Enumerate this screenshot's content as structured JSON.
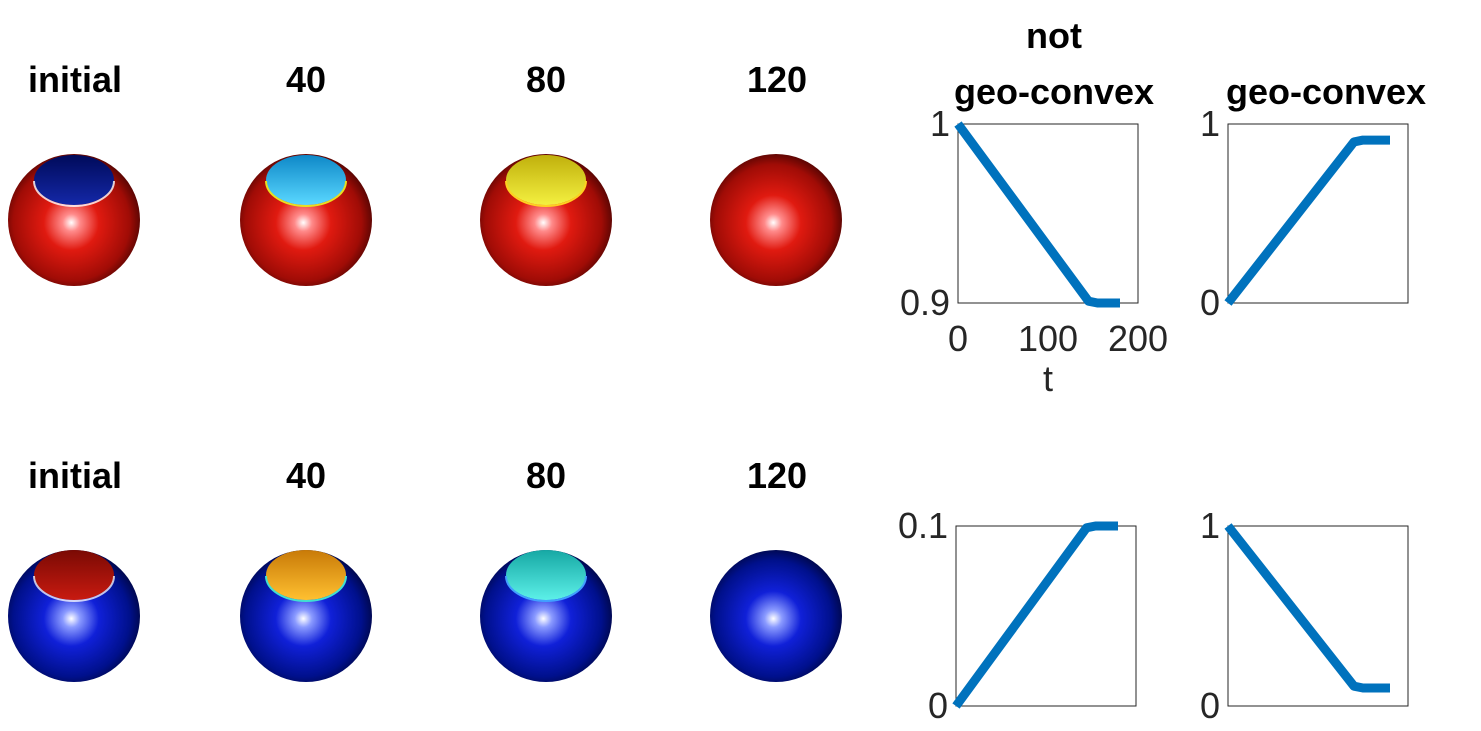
{
  "titles": {
    "frames": [
      "initial",
      "40",
      "80",
      "120"
    ],
    "plot_not_line1": "not",
    "plot_not_line2": "geo-convex",
    "plot_geo": "geo-convex"
  },
  "colors": {
    "red_sphere": "#c81208",
    "blue_sphere": "#0010c0",
    "line": "#0072bd",
    "cap_top": [
      "#0a1a8a",
      "#1aa8e0",
      "#e2e21a",
      "#c81208"
    ],
    "cap_bottom": [
      "#aa1106",
      "#f2a81a",
      "#2ed6d0",
      "#0010c0"
    ]
  },
  "chart_data": [
    {
      "type": "line",
      "title": "not geo-convex",
      "xlabel": "t",
      "ylabel": "",
      "xlim": [
        0,
        200
      ],
      "ylim": [
        0.9,
        1
      ],
      "xticks": [
        "0",
        "100",
        "200"
      ],
      "yticks": [
        "0.9",
        "1"
      ],
      "series": [
        {
          "x": [
            0,
            145,
            155,
            180
          ],
          "y": [
            1,
            0.901,
            0.9,
            0.9
          ]
        }
      ]
    },
    {
      "type": "line",
      "title": "geo-convex",
      "xlabel": "",
      "ylabel": "",
      "xlim": [
        0,
        200
      ],
      "ylim": [
        0,
        1
      ],
      "xticks": [],
      "yticks": [
        "0",
        "1"
      ],
      "series": [
        {
          "x": [
            0,
            140,
            150,
            180
          ],
          "y": [
            0,
            0.9,
            0.91,
            0.91
          ]
        }
      ]
    },
    {
      "type": "line",
      "title": "",
      "xlabel": "",
      "ylabel": "",
      "xlim": [
        0,
        200
      ],
      "ylim": [
        0,
        0.1
      ],
      "xticks": [],
      "yticks": [
        "0",
        "0.1"
      ],
      "series": [
        {
          "x": [
            0,
            145,
            155,
            180
          ],
          "y": [
            0,
            0.099,
            0.1,
            0.1
          ]
        }
      ]
    },
    {
      "type": "line",
      "title": "",
      "xlabel": "",
      "ylabel": "",
      "xlim": [
        0,
        200
      ],
      "ylim": [
        0,
        1
      ],
      "xticks": [],
      "yticks": [
        "0",
        "1"
      ],
      "series": [
        {
          "x": [
            0,
            140,
            150,
            180
          ],
          "y": [
            1,
            0.11,
            0.1,
            0.1
          ]
        }
      ]
    }
  ]
}
